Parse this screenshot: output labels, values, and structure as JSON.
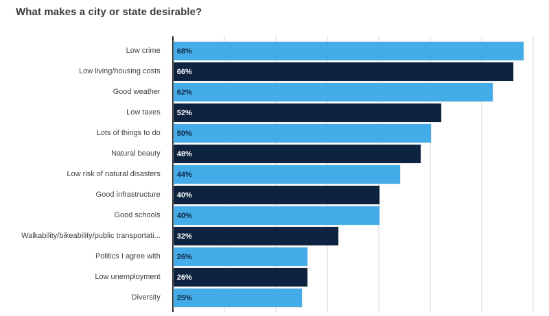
{
  "title": "What makes a city or state desirable?",
  "chart_data": {
    "type": "bar",
    "orientation": "horizontal",
    "title": "What makes a city or state desirable?",
    "categories": [
      "Low crime",
      "Low living/housing costs",
      "Good weather",
      "Low taxes",
      "Lots of things to do",
      "Natural beauty",
      "Low risk of natural disasters",
      "Good infrastructure",
      "Good schools",
      "Walkability/bikeability/public transportati...",
      "Politics I agree with",
      "Low unemployment",
      "Diversity"
    ],
    "values": [
      68,
      66,
      62,
      52,
      50,
      48,
      44,
      40,
      40,
      32,
      26,
      26,
      25
    ],
    "value_labels": [
      "68%",
      "66%",
      "62%",
      "52%",
      "50%",
      "48%",
      "44%",
      "40%",
      "40%",
      "32%",
      "26%",
      "26%",
      "25%"
    ],
    "xlabel": "",
    "ylabel": "",
    "xlim": [
      0,
      70
    ],
    "gridline_interval_percent": 10,
    "grid": true,
    "legend": false,
    "value_labels_position": "inside-left",
    "colors": {
      "bar_alternate": [
        "#44ADE9",
        "#0E2340"
      ],
      "value_text_alternate": [
        "#0E2340",
        "#FFFFFF"
      ],
      "axis_line": "#252525",
      "gridline": "#EAEAEA",
      "category_text": "#3F3F3F",
      "title_text": "#3C3C3C",
      "background": "#FFFFFF"
    }
  }
}
